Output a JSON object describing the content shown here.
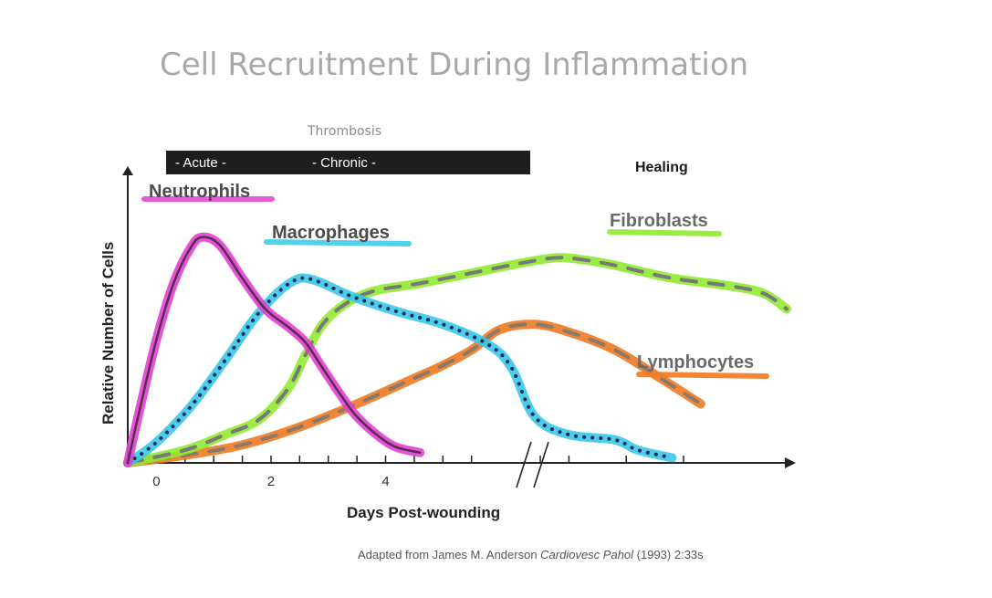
{
  "chart_data": {
    "type": "line",
    "title": "Cell Recruitment During Inflammation",
    "xlabel": "Days Post-wounding",
    "ylabel": "Relative Number of Cells",
    "xticks": [
      "0",
      "2",
      "4"
    ],
    "xlim": [
      -0.5,
      11
    ],
    "ylim": [
      0,
      100
    ],
    "axis_break_between": [
      5.8,
      6.3
    ],
    "phases": {
      "acute_label": "- Acute -",
      "chronic_label": "- Chronic -",
      "thrombosis_label": "Thrombosis",
      "healing_label": "Healing"
    },
    "series": [
      {
        "name": "Neutrophils",
        "color": "#e040d0",
        "overlay": "#5a2a50",
        "style": "solid",
        "x": [
          -0.5,
          -0.3,
          0,
          0.3,
          0.6,
          0.8,
          1.1,
          1.5,
          1.9,
          2.3,
          2.6,
          2.9,
          3.2,
          3.5,
          3.9,
          4.2,
          4.6
        ],
        "y": [
          0,
          20,
          48,
          70,
          84,
          88,
          85,
          72,
          60,
          53,
          47,
          37,
          27,
          18,
          10,
          6,
          4
        ]
      },
      {
        "name": "Macrophages",
        "color": "#38c8e8",
        "overlay": "#1a2a5a",
        "style": "dotted",
        "x": [
          -0.5,
          0,
          0.6,
          1.2,
          1.7,
          2.1,
          2.4,
          2.6,
          2.9,
          3.4,
          4.2,
          5,
          5.8,
          6.2,
          6.6,
          7.2,
          8,
          8.4,
          9
        ],
        "y": [
          0,
          8,
          22,
          40,
          56,
          66,
          71,
          72,
          70,
          65,
          59,
          54,
          46,
          37,
          18,
          11,
          9,
          5,
          2
        ]
      },
      {
        "name": "Fibroblasts",
        "color": "#90ea30",
        "overlay": "#787878",
        "style": "dashed",
        "x": [
          -0.5,
          0.5,
          1.2,
          1.8,
          2.3,
          2.6,
          2.9,
          3.3,
          3.8,
          4.6,
          5.5,
          6.4,
          7,
          7.5,
          8,
          9,
          10,
          10.6,
          11
        ],
        "y": [
          0,
          5,
          11,
          17,
          29,
          42,
          54,
          62,
          67,
          70,
          74,
          78,
          80,
          79,
          77,
          72,
          69,
          66,
          60
        ]
      },
      {
        "name": "Lymphocytes",
        "color": "#f07a20",
        "overlay": "#8a7a6a",
        "style": "dashed",
        "x": [
          -0.5,
          0.5,
          1.5,
          2.5,
          3.5,
          4.5,
          5,
          5.5,
          6,
          6.6,
          7.2,
          8,
          8.8,
          9.5
        ],
        "y": [
          0,
          3,
          7,
          14,
          23,
          33,
          38,
          44,
          52,
          54,
          51,
          44,
          33,
          23
        ]
      }
    ]
  },
  "source_note": {
    "prefix": "Adapted from James M. Anderson ",
    "journal": "Cardiovesc Pahol",
    "suffix": " (1993) 2:33s"
  }
}
